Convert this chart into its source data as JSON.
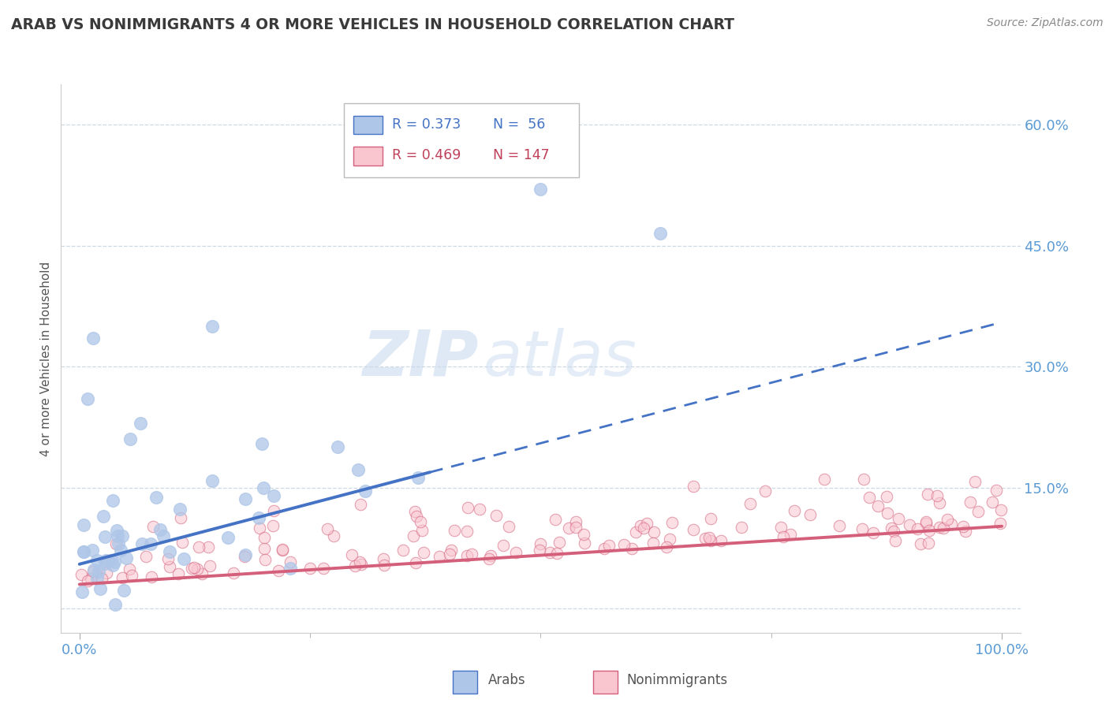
{
  "title": "ARAB VS NONIMMIGRANTS 4 OR MORE VEHICLES IN HOUSEHOLD CORRELATION CHART",
  "source": "Source: ZipAtlas.com",
  "ylabel": "4 or more Vehicles in Household",
  "watermark_zip": "ZIP",
  "watermark_atlas": "atlas",
  "legend_arab_r": "R = 0.373",
  "legend_arab_n": "N =  56",
  "legend_nonimm_r": "R = 0.469",
  "legend_nonimm_n": "N = 147",
  "arab_fill_color": "#aec6e8",
  "arab_line_color": "#4472c4",
  "nonimm_fill_color": "#f9c6d0",
  "nonimm_line_color": "#d45f7a",
  "title_color": "#3a3a3a",
  "axis_label_color": "#5b9bd5",
  "grid_color": "#c8d4e0",
  "source_color": "#888888",
  "ylabel_color": "#555555",
  "legend_text_color_arab": "#4472c4",
  "legend_text_color_nonimm": "#c0405a",
  "bottom_legend_color": "#555555",
  "xlim": [
    -2,
    102
  ],
  "ylim": [
    -3,
    65
  ],
  "yticks": [
    0,
    15,
    30,
    45,
    60
  ],
  "xtick_positions": [
    0,
    100
  ],
  "xtick_labels": [
    "0.0%",
    "100.0%"
  ],
  "ytick_labels": [
    "",
    "15.0%",
    "30.0%",
    "45.0%",
    "60.0%"
  ],
  "arab_line_x0": 0,
  "arab_line_y0": 5.5,
  "arab_line_slope": 0.3,
  "arab_solid_end": 38,
  "arab_line_xend": 100,
  "nonimm_line_x0": 0,
  "nonimm_line_y0": 3.0,
  "nonimm_line_slope": 0.072,
  "nonimm_line_xend": 100,
  "arab_n": 56,
  "nonimm_n": 147
}
